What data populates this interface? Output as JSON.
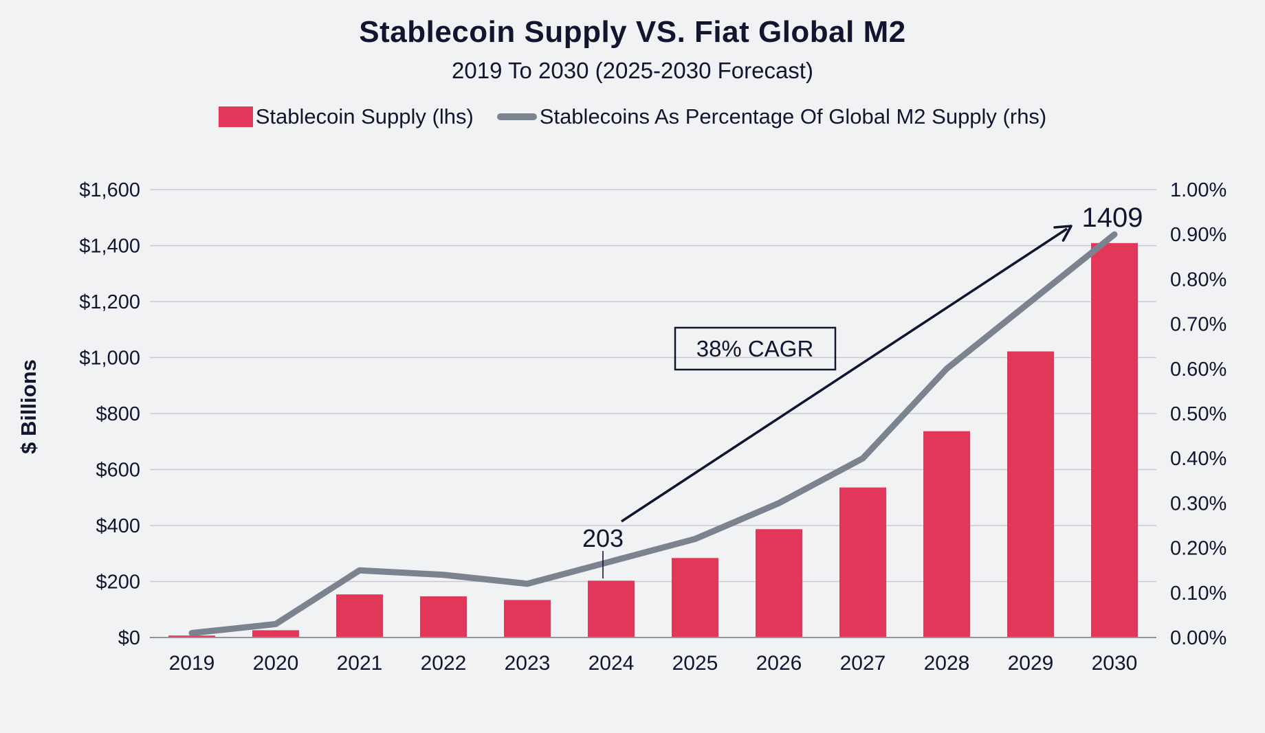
{
  "header": {
    "title": "Stablecoin Supply VS. Fiat Global M2",
    "subtitle": "2019 To 2030 (2025-2030 Forecast)"
  },
  "chart_data": {
    "type": "bar",
    "title": "Stablecoin Supply VS. Fiat Global M2",
    "subtitle": "2019 To 2030 (2025-2030 Forecast)",
    "categories": [
      "2019",
      "2020",
      "2021",
      "2022",
      "2023",
      "2024",
      "2025",
      "2026",
      "2027",
      "2028",
      "2029",
      "2030"
    ],
    "series": [
      {
        "name": "Stablecoin Supply (lhs)",
        "type": "bar",
        "axis": "left",
        "values": [
          7,
          26,
          154,
          147,
          134,
          203,
          284,
          387,
          536,
          737,
          1022,
          1409
        ]
      },
      {
        "name": "Stablecoins As Percentage Of Global M2 Supply (rhs)",
        "type": "line",
        "axis": "right",
        "values": [
          0.01,
          0.03,
          0.15,
          0.14,
          0.12,
          0.17,
          0.22,
          0.3,
          0.4,
          0.6,
          0.75,
          0.9
        ]
      }
    ],
    "left_axis": {
      "title": "$ Billions",
      "min": 0,
      "max": 1600,
      "step": 200,
      "ticks": [
        "$0",
        "$200",
        "$400",
        "$600",
        "$800",
        "$1,000",
        "$1,200",
        "$1,400",
        "$1,600"
      ]
    },
    "right_axis": {
      "min": 0,
      "max": 1.0,
      "step": 0.1,
      "ticks": [
        "0.00%",
        "0.10%",
        "0.20%",
        "0.30%",
        "0.40%",
        "0.50%",
        "0.60%",
        "0.70%",
        "0.80%",
        "0.90%",
        "1.00%"
      ]
    },
    "annotations": {
      "bar_2024": "203",
      "bar_2030": "1409",
      "cagr": "38% CAGR"
    },
    "grid": true,
    "legend_position": "top",
    "colors": {
      "background": "#f1f2f4",
      "bar": "#e23759",
      "line": "#7b8391",
      "text": "#14142f",
      "grid": "#c9cad1",
      "axis": "#8f93a0"
    }
  }
}
